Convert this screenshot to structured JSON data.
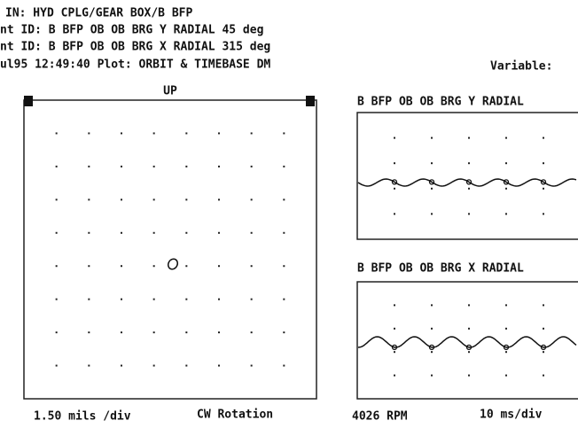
{
  "header": {
    "lines": [
      "IN:  HYD CPLG/GEAR BOX/B BFP",
      "nt ID: B BFP OB OB BRG Y RADIAL  45 deg",
      "nt ID: B BFP OB OB BRG X RADIAL 315 deg",
      "ul95 12:49:40  Plot: ORBIT & TIMEBASE DM"
    ],
    "variable": "Variable:"
  },
  "orbit": {
    "label": "UP",
    "scale": "1.50 mils /div",
    "rotation": "CW Rotation"
  },
  "timebase": {
    "titles": [
      "B BFP OB OB BRG Y RADIAL",
      "B BFP OB OB BRG X RADIAL"
    ],
    "speed": "4026 RPM",
    "scale": "10  ms/div"
  }
}
